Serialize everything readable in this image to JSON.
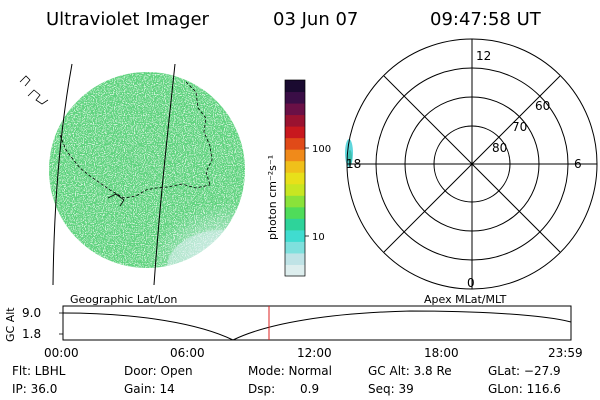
{
  "header": {
    "title": "Ultraviolet Imager",
    "date": "03 Jun 07",
    "time": "09:47:58 UT"
  },
  "colorbar": {
    "label": "photon cm⁻²s⁻¹",
    "ticks": [
      "100",
      "10"
    ],
    "colors": [
      "#ddeeee",
      "#bfe3e6",
      "#7fe0dd",
      "#40dcd0",
      "#2ed39a",
      "#4fdc5a",
      "#8ae23a",
      "#c8e622",
      "#e8e01a",
      "#f0c01a",
      "#f08a1a",
      "#e04a18",
      "#c8181e",
      "#9a1230",
      "#6a1046",
      "#3a0e46",
      "#1a0a30"
    ]
  },
  "left_image": {
    "label": "Geographic Lat/Lon"
  },
  "polar": {
    "label": "Apex  MLat/MLT",
    "mlt_labels": [
      "12",
      "6",
      "0",
      "18"
    ],
    "lat_labels": [
      "60",
      "70",
      "80"
    ]
  },
  "timeline": {
    "ylabel": "GC Alt",
    "ytick_top": "9.0",
    "ytick_bottom": "1.8",
    "xticks": [
      "00:00",
      "06:00",
      "12:00",
      "18:00",
      "23:59"
    ],
    "marker_color": "#dd2222"
  },
  "info": {
    "row1": [
      "Flt: LBHL",
      "Door: Open",
      "Mode: Normal",
      "GC Alt: 3.8 Re",
      "GLat: −27.9"
    ],
    "row2": [
      "IP: 36.0",
      "Gain: 14",
      "Dsp:",
      "0.9",
      "Seq: 39",
      "GLon: 116.6"
    ]
  }
}
